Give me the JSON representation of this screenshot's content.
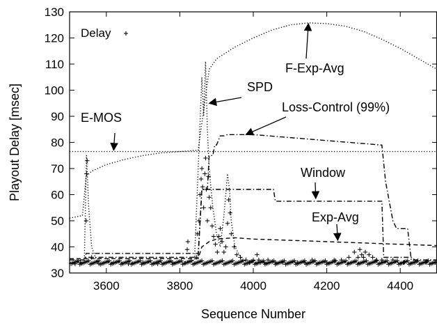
{
  "chart_data": {
    "type": "line",
    "title": "",
    "xlabel": "Sequence Number",
    "ylabel": "Playout Delay [msec]",
    "xlim": [
      3500,
      4500
    ],
    "ylim": [
      30,
      130
    ],
    "x_ticks": [
      3600,
      3800,
      4000,
      4200,
      4400
    ],
    "y_ticks": [
      30,
      40,
      50,
      60,
      70,
      80,
      90,
      100,
      110,
      120,
      130
    ],
    "grid": false,
    "legend": {
      "position": "top-left",
      "entries": [
        {
          "label": "Delay",
          "marker": "+"
        }
      ]
    },
    "series": [
      {
        "name": "E-MOS",
        "style": "dotted",
        "x": [
          3500,
          3550,
          3600,
          3700,
          3780,
          3840,
          3860,
          3880,
          3920,
          4000,
          4100,
          4200,
          4300,
          4330,
          4360,
          4400,
          4500
        ],
        "y": [
          76.5,
          76.5,
          76.5,
          76.5,
          76.5,
          76.5,
          76.5,
          76.5,
          76.5,
          76.5,
          76.5,
          76.5,
          76.5,
          76.5,
          76.5,
          76.5,
          76.5
        ]
      },
      {
        "name": "F-Exp-Avg",
        "style": "dotted",
        "x": [
          3500,
          3535,
          3545,
          3560,
          3600,
          3650,
          3700,
          3750,
          3800,
          3850,
          3880,
          3900,
          3950,
          4000,
          4050,
          4100,
          4150,
          4200,
          4250,
          4300,
          4350,
          4400,
          4450,
          4500
        ],
        "y": [
          51,
          52,
          67,
          69,
          71.5,
          73.5,
          75,
          76,
          76.5,
          77,
          108,
          112,
          116.5,
          120,
          123,
          125,
          125.8,
          125.5,
          124.5,
          122.5,
          119.5,
          116,
          112,
          108
        ]
      },
      {
        "name": "SPD",
        "style": "dotted",
        "x": [
          3500,
          3540,
          3546,
          3552,
          3560,
          3575,
          3600,
          3700,
          3800,
          3840,
          3850,
          3860,
          3865,
          3870,
          3875,
          3880,
          3890,
          3900,
          3910,
          3920,
          3930,
          3935,
          3940,
          3950,
          3970,
          4000,
          4100,
          4200,
          4300,
          4400,
          4500
        ],
        "y": [
          34,
          34,
          75,
          55,
          40,
          34,
          34,
          34,
          34,
          35,
          70,
          105,
          90,
          111,
          85,
          70,
          55,
          45,
          40,
          52,
          68,
          62,
          50,
          40,
          35,
          34,
          34,
          34,
          34,
          34,
          34
        ]
      },
      {
        "name": "Loss-Control (99%)",
        "style": "dash-dot",
        "x": [
          3500,
          3540,
          3545,
          3700,
          3800,
          3850,
          3860,
          3875,
          3880,
          3890,
          3895,
          3900,
          3910,
          3920,
          3930,
          4000,
          4350,
          4360,
          4380,
          4390,
          4420,
          4430,
          4440,
          4500
        ],
        "y": [
          35,
          35,
          37.5,
          37.5,
          37.5,
          37.5,
          62,
          62,
          75,
          75,
          79,
          79,
          82.5,
          82.5,
          83,
          83,
          79,
          65,
          50,
          47,
          47,
          35,
          35,
          35
        ]
      },
      {
        "name": "Window",
        "style": "dash-dot",
        "x": [
          3500,
          3540,
          3545,
          3700,
          3800,
          3850,
          3860,
          3870,
          3890,
          4055,
          4060,
          4350,
          4355,
          4430,
          4440,
          4500
        ],
        "y": [
          35,
          35,
          36,
          36,
          36,
          36,
          62,
          62,
          62,
          62,
          57.5,
          57.5,
          36,
          36,
          35,
          35
        ]
      },
      {
        "name": "Exp-Avg",
        "style": "dashed",
        "x": [
          3500,
          3700,
          3800,
          3850,
          3860,
          3880,
          3900,
          3950,
          4000,
          4100,
          4200,
          4300,
          4400,
          4500
        ],
        "y": [
          35.5,
          35.5,
          35.5,
          35.5,
          40,
          42,
          43,
          43.5,
          43,
          42.5,
          42,
          41.5,
          41,
          40.5
        ]
      }
    ],
    "delay_points": {
      "name": "Delay",
      "marker": "+",
      "baseline": 34,
      "x": [
        3515,
        3530,
        3545,
        3546,
        3548,
        3560,
        3580,
        3620,
        3660,
        3700,
        3740,
        3780,
        3820,
        3822,
        3845,
        3848,
        3852,
        3855,
        3858,
        3860,
        3862,
        3865,
        3868,
        3870,
        3872,
        3875,
        3878,
        3880,
        3884,
        3888,
        3892,
        3897,
        3902,
        3906,
        3910,
        3915,
        3920,
        3925,
        3930,
        3933,
        3937,
        3940,
        3948,
        3955,
        3965,
        3980,
        3990,
        4000,
        4010,
        4015,
        4020,
        4030,
        4040,
        4060,
        4080,
        4100,
        4120,
        4140,
        4160,
        4180,
        4200,
        4220,
        4240,
        4260,
        4275,
        4285,
        4290,
        4295,
        4300,
        4305,
        4315,
        4325,
        4335,
        4350,
        4380,
        4410,
        4440,
        4470,
        4495
      ],
      "y": [
        33.5,
        34,
        50,
        68,
        73,
        36,
        33.5,
        34,
        33.5,
        34,
        33.5,
        34,
        39,
        42,
        36,
        45,
        50,
        60,
        66,
        70,
        63,
        55,
        68,
        74,
        62,
        50,
        67,
        59,
        55,
        48,
        44,
        41,
        38,
        44,
        47,
        42,
        38,
        40,
        49,
        58,
        53,
        45,
        40,
        37,
        36,
        35,
        34,
        35,
        37,
        35,
        34,
        34,
        35,
        34,
        34,
        34,
        34,
        34,
        35,
        34,
        34,
        35,
        35,
        36,
        38,
        36,
        39,
        37,
        36,
        38,
        37,
        36,
        35,
        35,
        35,
        34,
        34,
        34,
        34
      ]
    },
    "annotations": [
      {
        "text": "F-Exp-Avg",
        "target": "F-Exp-Avg"
      },
      {
        "text": "SPD",
        "target": "SPD"
      },
      {
        "text": "E-MOS",
        "target": "E-MOS"
      },
      {
        "text": "Loss-Control (99%)",
        "target": "Loss-Control (99%)"
      },
      {
        "text": "Window",
        "target": "Window"
      },
      {
        "text": "Exp-Avg",
        "target": "Exp-Avg"
      }
    ]
  }
}
